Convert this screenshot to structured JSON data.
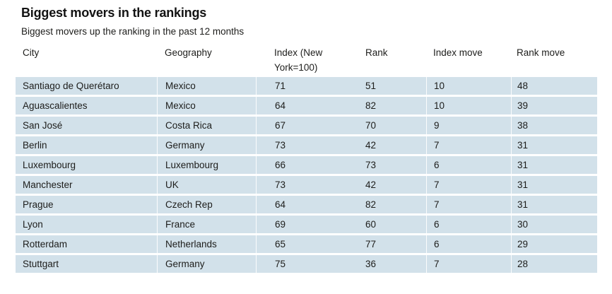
{
  "chart_data": {
    "type": "table",
    "title": "Biggest movers in the rankings",
    "subtitle": "Biggest movers up the ranking in the past 12 months",
    "columns": [
      "City",
      "Geography",
      "Index (New York=100)",
      "Rank",
      "Index move",
      "Rank move"
    ],
    "rows": [
      [
        "Santiago de Querétaro",
        "Mexico",
        71,
        51,
        10,
        48
      ],
      [
        "Aguascalientes",
        "Mexico",
        64,
        82,
        10,
        39
      ],
      [
        "San José",
        "Costa Rica",
        67,
        70,
        9,
        38
      ],
      [
        "Berlin",
        "Germany",
        73,
        42,
        7,
        31
      ],
      [
        "Luxembourg",
        "Luxembourg",
        66,
        73,
        6,
        31
      ],
      [
        "Manchester",
        "UK",
        73,
        42,
        7,
        31
      ],
      [
        "Prague",
        "Czech Rep",
        64,
        82,
        7,
        31
      ],
      [
        "Lyon",
        "France",
        69,
        60,
        6,
        30
      ],
      [
        "Rotterdam",
        "Netherlands",
        65,
        77,
        6,
        29
      ],
      [
        "Stuttgart",
        "Germany",
        75,
        36,
        7,
        28
      ]
    ],
    "layout": {
      "row_stripes": "all",
      "grid": "off",
      "header_position": "top"
    }
  },
  "colors": {
    "row_background": "#d2e1ea",
    "text": "#1d1d1b",
    "title_text": "#121212",
    "page_background": "#ffffff",
    "column_separator": "#ffffff"
  }
}
